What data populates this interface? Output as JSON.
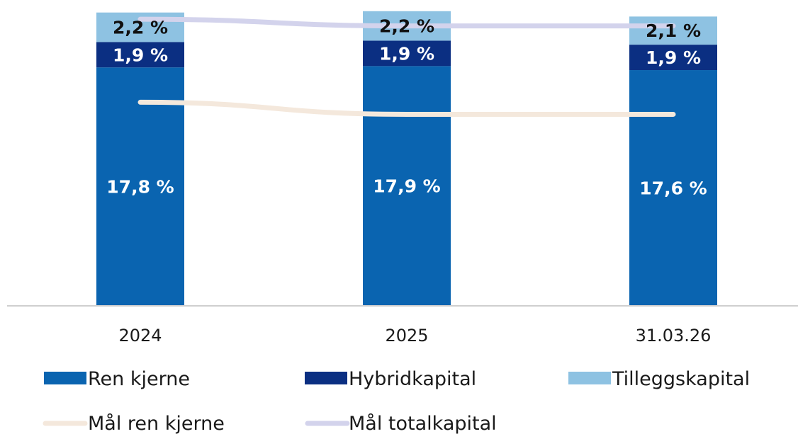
{
  "chart_data": {
    "type": "bar",
    "stacked": true,
    "categories": [
      "2024",
      "2025",
      "31.03.26"
    ],
    "series": [
      {
        "name": "Ren kjerne",
        "color": "#0a64b0",
        "values": [
          17.8,
          17.9,
          17.6
        ],
        "labels": [
          "17,8 %",
          "17,9 %",
          "17,6 %"
        ],
        "label_color": "#ffffff"
      },
      {
        "name": "Hybridkapital",
        "color": "#0b2f82",
        "values": [
          1.9,
          1.9,
          1.9
        ],
        "labels": [
          "1,9 %",
          "1,9 %",
          "1,9 %"
        ],
        "label_color": "#ffffff"
      },
      {
        "name": "Tilleggskapital",
        "color": "#8ec2e2",
        "values": [
          2.2,
          2.2,
          2.1
        ],
        "labels": [
          "2,2 %",
          "2,2 %",
          "2,1 %"
        ],
        "label_color": "#111111"
      }
    ],
    "lines": [
      {
        "name": "Mål ren kjerne",
        "color": "#f4e8dc",
        "values": [
          15.2,
          14.3,
          14.3
        ]
      },
      {
        "name": "Mål totalkapital",
        "color": "#d3d3ec",
        "values": [
          21.4,
          20.9,
          20.9
        ]
      }
    ],
    "ylim": [
      0,
      22.2
    ],
    "grid": false,
    "legend_position": "bottom"
  }
}
